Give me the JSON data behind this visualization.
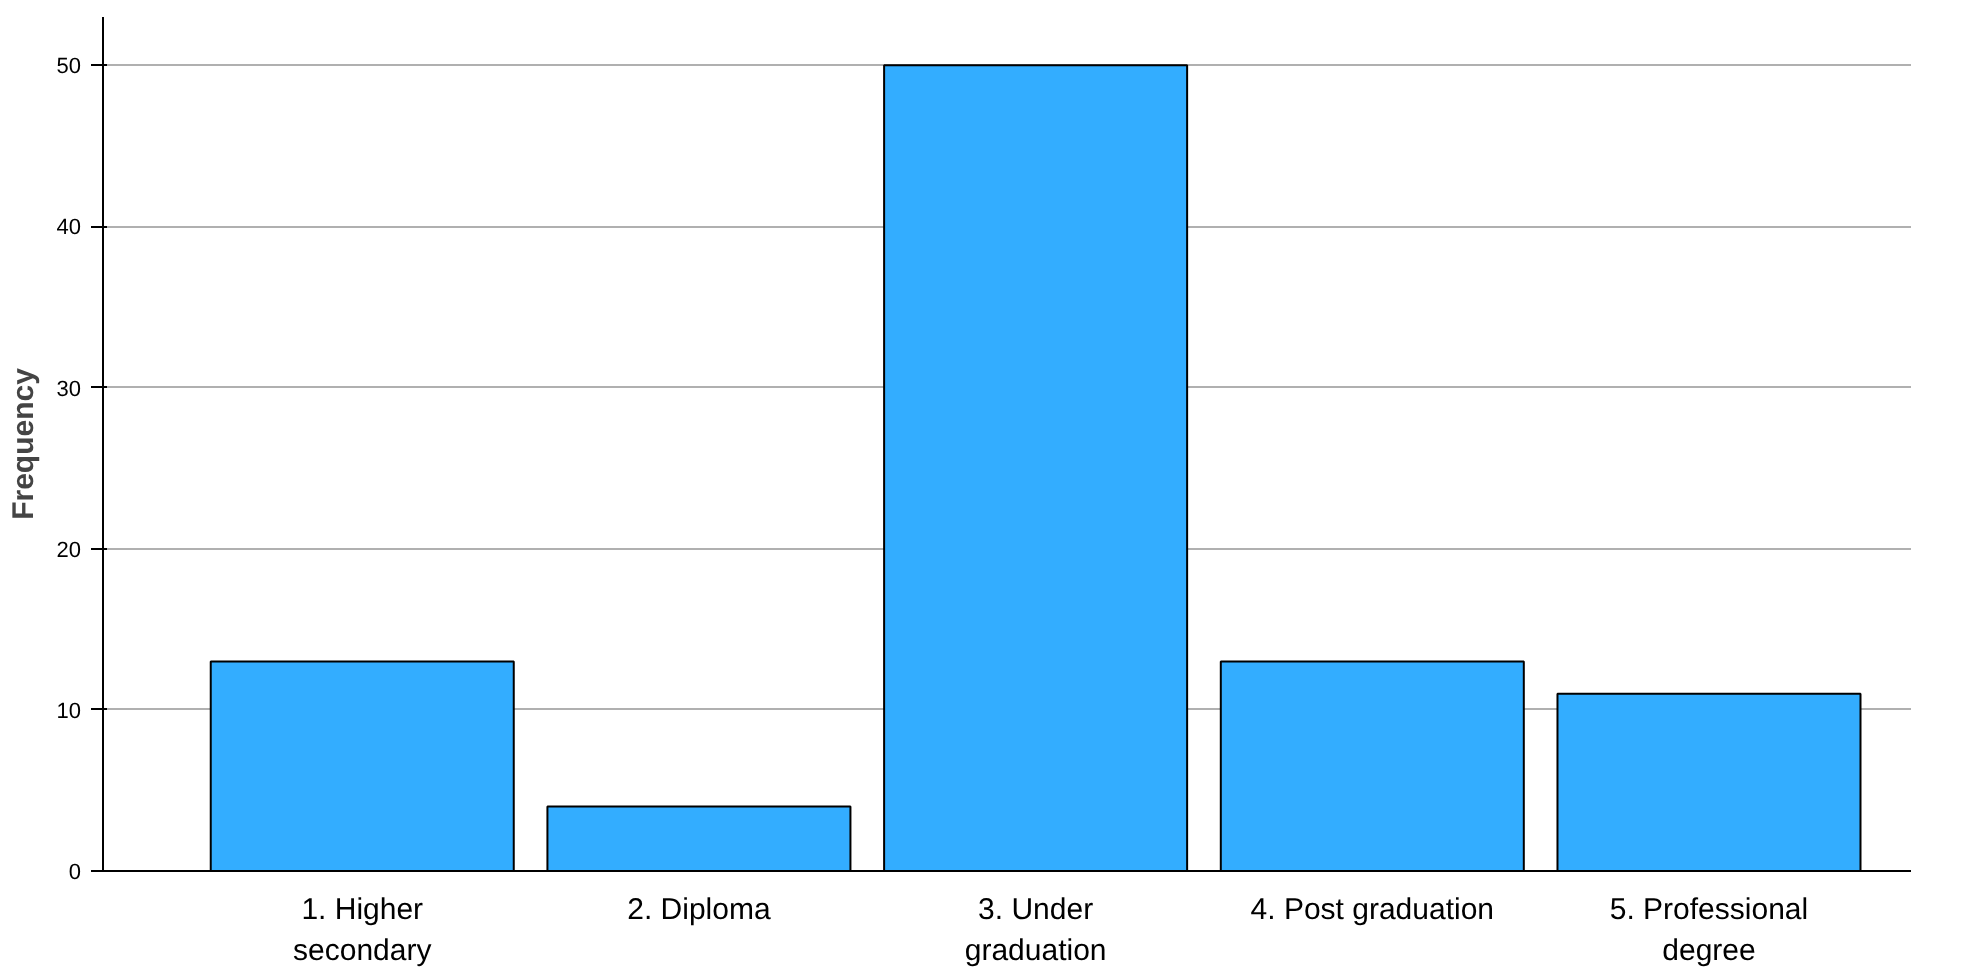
{
  "chart_data": {
    "type": "bar",
    "ylabel": "Frequency",
    "categories": [
      "1. Higher\nsecondary",
      "2. Diploma",
      "3. Under\ngraduation",
      "4. Post graduation",
      "5. Professional\ndegree"
    ],
    "values": [
      13,
      4,
      50,
      13,
      11
    ],
    "color": "#33adff",
    "ylim": [
      0,
      53
    ],
    "yticks": [
      0,
      10,
      20,
      30,
      40,
      50
    ],
    "grid": "y"
  }
}
